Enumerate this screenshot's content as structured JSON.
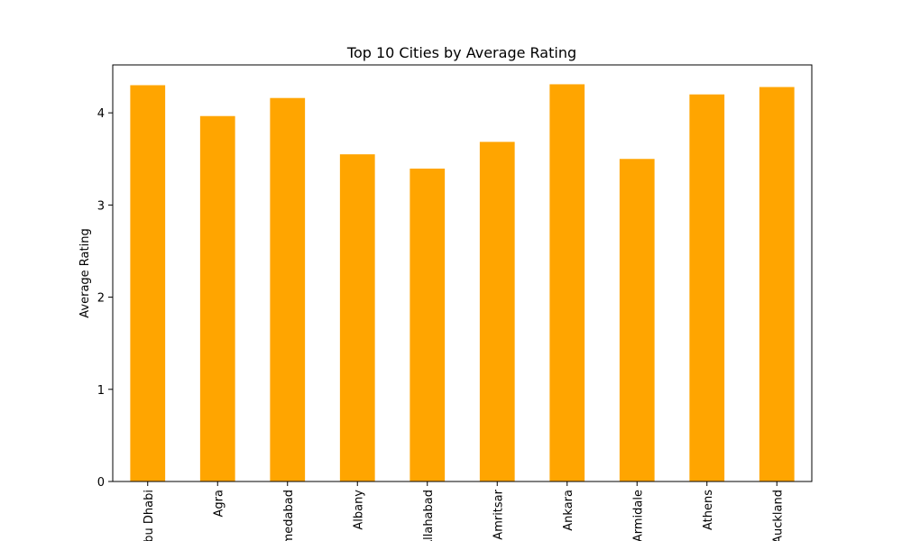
{
  "chart_data": {
    "type": "bar",
    "title": "Top 10 Cities by Average Rating",
    "xlabel": "",
    "ylabel": "Average Rating",
    "categories": [
      "Abu Dhabi",
      "Agra",
      "Ahmedabad",
      "Albany",
      "Allahabad",
      "Amritsar",
      "Ankara",
      "Armidale",
      "Athens",
      "Auckland"
    ],
    "values": [
      4.3,
      3.965,
      4.161,
      3.55,
      3.395,
      3.685,
      4.31,
      3.5,
      4.2,
      4.28
    ],
    "ylim": [
      0,
      4.52
    ],
    "yticks": [
      0,
      1,
      2,
      3,
      4
    ],
    "bar_color": "#ffa500",
    "grid": false,
    "legend": "none"
  }
}
